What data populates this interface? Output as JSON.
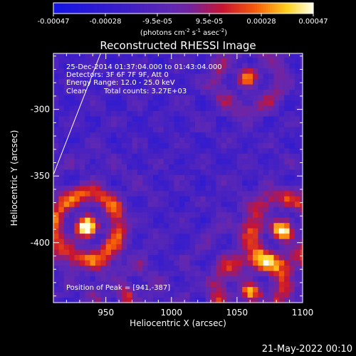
{
  "chart_data": {
    "type": "heatmap",
    "title": "Reconstructed RHESSI Image",
    "xlabel": "Heliocentric X (arcsec)",
    "ylabel": "Heliocentric Y (arcsec)",
    "x_ticks": [
      950,
      1000,
      1050,
      1100
    ],
    "y_ticks": [
      -300,
      -350,
      -400
    ],
    "xlim": [
      910,
      1100
    ],
    "ylim": [
      -445,
      -258
    ],
    "colorbar": {
      "ticks": [
        "-0.00047",
        "-0.00028",
        "-9.5e-05",
        "9.5e-05",
        "0.00028",
        "0.00047"
      ],
      "range": [
        -0.00047,
        0.00047
      ],
      "unit_prefix": "(photons cm",
      "unit_exp1": "-2",
      "unit_mid": " s",
      "unit_exp2": "-1",
      "unit_mid2": " asec",
      "unit_exp3": "-2",
      "unit_suffix": ")"
    },
    "annotations": [
      "25-Dec-2014 01:37:04.000 to 01:43:04.000",
      "Detectors: 3F 6F 7F 9F, Att 0",
      "Energy Range: 12.0 - 25.0 keV",
      "Clean",
      "Total counts: 3.27E+03"
    ],
    "peak_label": "Position of Peak = [941,-387]",
    "peak": [
      941,
      -387
    ],
    "limb_line": [
      [
        910,
        -349
      ],
      [
        946,
        -258
      ]
    ],
    "sources": [
      {
        "x": 935,
        "y": -388,
        "sigma": 22,
        "amp": 1.0
      },
      {
        "x": 1085,
        "y": -390,
        "sigma": 22,
        "amp": 0.8
      },
      {
        "x": 1060,
        "y": -438,
        "sigma": 25,
        "amp": 0.65
      },
      {
        "x": 1058,
        "y": -275,
        "sigma": 20,
        "amp": 0.55
      },
      {
        "x": 965,
        "y": -440,
        "sigma": 16,
        "amp": 0.4
      }
    ],
    "background_level": -0.35,
    "grid": false
  },
  "footer": {
    "timestamp": "21-May-2022 00:10"
  },
  "colors": {
    "background": "#000000",
    "foreground": "#ffffff"
  }
}
